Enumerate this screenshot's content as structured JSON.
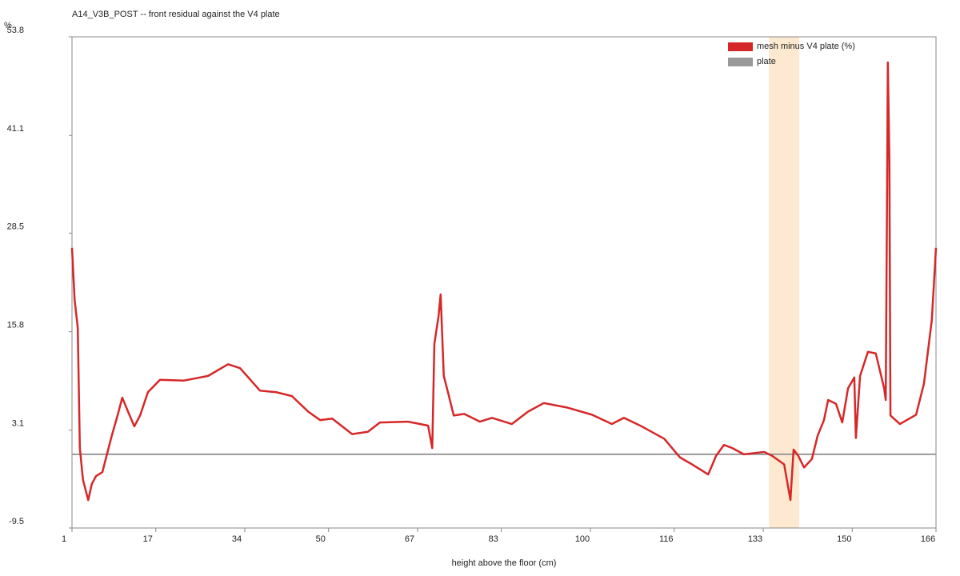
{
  "chart_data": {
    "type": "line",
    "title": "A14_V3B_POST -- front residual against the V4 plate",
    "x_label": "height above the floor (cm)",
    "y_label": "%",
    "xlim": [
      1,
      166
    ],
    "ylim": [
      -9.5,
      53.8
    ],
    "xticks": [
      1,
      17,
      34,
      50,
      67,
      83,
      100,
      116,
      133,
      150,
      166
    ],
    "yticks": [
      -9.5,
      3.1,
      15.8,
      28.5,
      41.1,
      53.8
    ],
    "legend": "upper right",
    "highlight": {
      "xrange": [
        134.1,
        139.9
      ],
      "color": "#fde9cf"
    },
    "reference_line": {
      "name": "plate",
      "value": 0,
      "color": "#999999"
    },
    "series": [
      {
        "name": "mesh minus V4 plate (%)",
        "color": "#d62728",
        "x": [
          1.0,
          1.5,
          2.1,
          2.5,
          3.1,
          4.1,
          4.8,
          5.6,
          6.8,
          7.6,
          8.6,
          9.7,
          10.6,
          11.7,
          12.9,
          14.0,
          15.5,
          17.8,
          22.4,
          27.0,
          30.8,
          33.1,
          36.9,
          40.0,
          43.0,
          46.1,
          48.4,
          50.7,
          54.5,
          57.5,
          59.8,
          65.2,
          69.0,
          69.8,
          70.2,
          71.0,
          71.4,
          72.0,
          72.8,
          73.9,
          75.9,
          78.9,
          81.2,
          85.0,
          88.1,
          91.1,
          95.7,
          100.3,
          104.1,
          106.4,
          109.5,
          114.1,
          117.1,
          119.4,
          122.5,
          124.0,
          125.5,
          127.1,
          129.3,
          133.2,
          134.7,
          137.0,
          138.2,
          138.8,
          139.7,
          140.8,
          142.3,
          143.4,
          144.6,
          145.4,
          146.9,
          148.1,
          149.2,
          150.4,
          150.7,
          151.5,
          153.0,
          154.5,
          156.1,
          156.4,
          156.7,
          156.8,
          157.1,
          157.3,
          159.1,
          162.2,
          163.7,
          165.2,
          166.0
        ],
        "values": [
          26.6,
          19.9,
          16.3,
          0.8,
          -3.3,
          -5.9,
          -3.8,
          -2.8,
          -2.3,
          -0.2,
          2.4,
          5.0,
          7.3,
          5.5,
          3.6,
          5.0,
          8.0,
          9.6,
          9.5,
          10.1,
          11.6,
          11.1,
          8.2,
          8.0,
          7.5,
          5.5,
          4.4,
          4.6,
          2.6,
          2.9,
          4.1,
          4.2,
          3.7,
          0.8,
          14.2,
          17.8,
          20.6,
          10.1,
          8.0,
          5.0,
          5.2,
          4.2,
          4.7,
          3.9,
          5.5,
          6.6,
          6.0,
          5.1,
          3.9,
          4.7,
          3.7,
          2.0,
          -0.4,
          -1.3,
          -2.6,
          -0.2,
          1.2,
          0.8,
          0.0,
          0.3,
          -0.2,
          -1.3,
          -5.9,
          0.6,
          -0.2,
          -1.7,
          -0.6,
          2.4,
          4.4,
          7.0,
          6.5,
          4.1,
          8.5,
          9.9,
          2.1,
          10.1,
          13.2,
          13.0,
          8.5,
          7.0,
          37.9,
          50.5,
          37.9,
          5.0,
          3.9,
          5.1,
          9.1,
          17.3,
          26.6
        ]
      }
    ]
  }
}
